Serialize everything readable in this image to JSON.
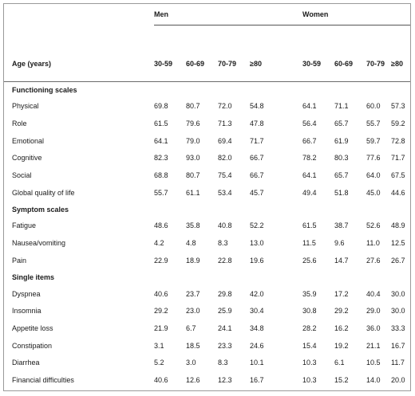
{
  "groups": {
    "men": "Men",
    "women": "Women"
  },
  "row_header": "Age (years)",
  "age_groups": [
    "30-59",
    "60-69",
    "70-79",
    "≥80"
  ],
  "sections": [
    {
      "title": "Functioning scales",
      "rows": [
        {
          "label": "Physical",
          "men": [
            "69.8",
            "80.7",
            "72.0",
            "54.8"
          ],
          "women": [
            "64.1",
            "71.1",
            "60.0",
            "57.3"
          ]
        },
        {
          "label": "Role",
          "men": [
            "61.5",
            "79.6",
            "71.3",
            "47.8"
          ],
          "women": [
            "56.4",
            "65.7",
            "55.7",
            "59.2"
          ]
        },
        {
          "label": "Emotional",
          "men": [
            "64.1",
            "79.0",
            "69.4",
            "71.7"
          ],
          "women": [
            "66.7",
            "61.9",
            "59.7",
            "72.8"
          ]
        },
        {
          "label": "Cognitive",
          "men": [
            "82.3",
            "93.0",
            "82.0",
            "66.7"
          ],
          "women": [
            "78.2",
            "80.3",
            "77.6",
            "71.7"
          ]
        },
        {
          "label": "Social",
          "men": [
            "68.8",
            "80.7",
            "75.4",
            "66.7"
          ],
          "women": [
            "64.1",
            "65.7",
            "64.0",
            "67.5"
          ]
        },
        {
          "label": "Global quality of life",
          "men": [
            "55.7",
            "61.1",
            "53.4",
            "45.7"
          ],
          "women": [
            "49.4",
            "51.8",
            "45.0",
            "44.6"
          ]
        }
      ]
    },
    {
      "title": "Symptom scales",
      "rows": [
        {
          "label": "Fatigue",
          "men": [
            "48.6",
            "35.8",
            "40.8",
            "52.2"
          ],
          "women": [
            "61.5",
            "38.7",
            "52.6",
            "48.9"
          ]
        },
        {
          "label": "Nausea/vomiting",
          "men": [
            "4.2",
            "4.8",
            "8.3",
            "13.0"
          ],
          "women": [
            "11.5",
            "9.6",
            "11.0",
            "12.5"
          ]
        },
        {
          "label": "Pain",
          "men": [
            "22.9",
            "18.9",
            "22.8",
            "19.6"
          ],
          "women": [
            "25.6",
            "14.7",
            "27.6",
            "26.7"
          ]
        }
      ]
    },
    {
      "title": "Single items",
      "rows": [
        {
          "label": "Dyspnea",
          "men": [
            "40.6",
            "23.7",
            "29.8",
            "42.0"
          ],
          "women": [
            "35.9",
            "17.2",
            "40.4",
            "30.0"
          ]
        },
        {
          "label": "Insomnia",
          "men": [
            "29.2",
            "23.0",
            "25.9",
            "30.4"
          ],
          "women": [
            "30.8",
            "29.2",
            "29.0",
            "30.0"
          ]
        },
        {
          "label": "Appetite loss",
          "men": [
            "21.9",
            "6.7",
            "24.1",
            "34.8"
          ],
          "women": [
            "28.2",
            "16.2",
            "36.0",
            "33.3"
          ]
        },
        {
          "label": "Constipation",
          "men": [
            "3.1",
            "18.5",
            "23.3",
            "24.6"
          ],
          "women": [
            "15.4",
            "19.2",
            "21.1",
            "16.7"
          ]
        },
        {
          "label": "Diarrhea",
          "men": [
            "5.2",
            "3.0",
            "8.3",
            "10.1"
          ],
          "women": [
            "10.3",
            "6.1",
            "10.5",
            "11.7"
          ]
        },
        {
          "label": "Financial difficulties",
          "men": [
            "40.6",
            "12.6",
            "12.3",
            "16.7"
          ],
          "women": [
            "10.3",
            "15.2",
            "14.0",
            "20.0"
          ]
        }
      ]
    }
  ]
}
